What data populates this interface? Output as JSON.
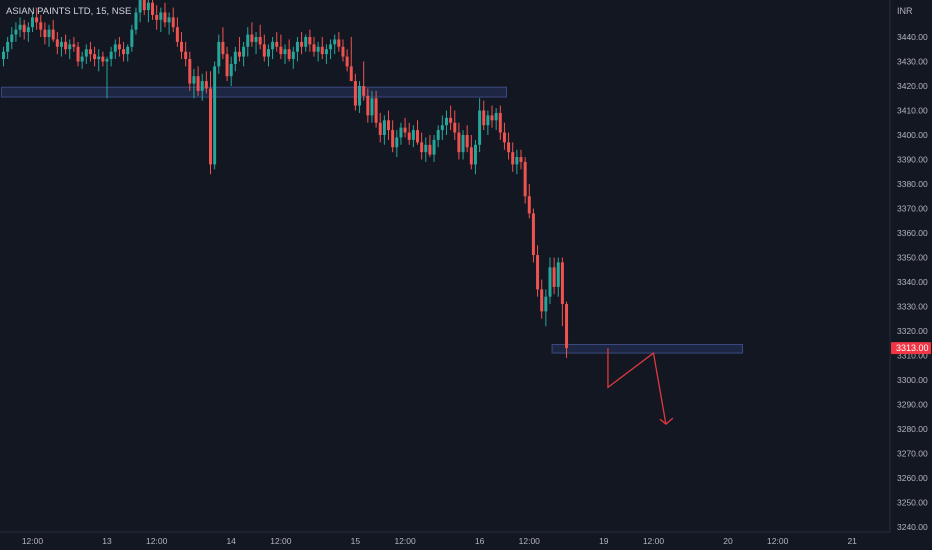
{
  "header": {
    "symbol_title": "ASIAN PAINTS LTD, 15, NSE",
    "currency": "INR"
  },
  "price_badge": {
    "value": "3313.00",
    "color": "#f23645"
  },
  "colors": {
    "background": "#131722",
    "up": "#26a69a",
    "down": "#ef5350",
    "zone_fill": "#2a3a6b",
    "zone_border": "#3b4a80",
    "projection": "#e0383e",
    "axis_text": "#b2b5be"
  },
  "chart_data": {
    "type": "candlestick",
    "y_axis": {
      "range": [
        3236,
        3462
      ],
      "ticks": [
        3240,
        3250,
        3260,
        3270,
        3280,
        3290,
        3300,
        3310,
        3320,
        3330,
        3340,
        3350,
        3360,
        3370,
        3380,
        3390,
        3400,
        3410,
        3420,
        3430,
        3440
      ],
      "position": "right"
    },
    "x_axis": {
      "labels": [
        "12:00",
        "13",
        "12:00",
        "14",
        "12:00",
        "15",
        "12:00",
        "16",
        "12:00",
        "19",
        "12:00",
        "20",
        "12:00",
        "21"
      ],
      "label_bars": [
        7,
        25,
        37,
        55,
        67,
        85,
        97,
        115,
        127,
        145,
        157,
        175,
        187,
        205
      ]
    },
    "candles": [
      [
        3431,
        3436,
        3428,
        3434
      ],
      [
        3434,
        3440,
        3431,
        3438
      ],
      [
        3438,
        3444,
        3435,
        3441
      ],
      [
        3441,
        3446,
        3438,
        3443
      ],
      [
        3443,
        3448,
        3440,
        3445
      ],
      [
        3445,
        3447,
        3439,
        3442
      ],
      [
        3442,
        3446,
        3438,
        3444
      ],
      [
        3444,
        3450,
        3442,
        3448
      ],
      [
        3448,
        3452,
        3443,
        3446
      ],
      [
        3446,
        3449,
        3440,
        3443
      ],
      [
        3443,
        3446,
        3437,
        3440
      ],
      [
        3440,
        3445,
        3436,
        3443
      ],
      [
        3443,
        3447,
        3438,
        3439
      ],
      [
        3439,
        3442,
        3433,
        3436
      ],
      [
        3436,
        3440,
        3432,
        3438
      ],
      [
        3438,
        3441,
        3433,
        3435
      ],
      [
        3435,
        3439,
        3431,
        3437
      ],
      [
        3437,
        3440,
        3434,
        3436
      ],
      [
        3436,
        3438,
        3428,
        3430
      ],
      [
        3430,
        3434,
        3427,
        3432
      ],
      [
        3432,
        3437,
        3429,
        3435
      ],
      [
        3435,
        3438,
        3430,
        3433
      ],
      [
        3433,
        3436,
        3428,
        3431
      ],
      [
        3431,
        3435,
        3426,
        3432
      ],
      [
        3432,
        3434,
        3428,
        3430
      ],
      [
        3430,
        3432,
        3415,
        3431
      ],
      [
        3431,
        3436,
        3428,
        3434
      ],
      [
        3434,
        3439,
        3431,
        3437
      ],
      [
        3437,
        3440,
        3432,
        3435
      ],
      [
        3435,
        3438,
        3430,
        3433
      ],
      [
        3433,
        3437,
        3430,
        3436
      ],
      [
        3436,
        3445,
        3434,
        3443
      ],
      [
        3443,
        3452,
        3441,
        3450
      ],
      [
        3450,
        3460,
        3446,
        3456
      ],
      [
        3456,
        3460,
        3449,
        3451
      ],
      [
        3451,
        3458,
        3446,
        3454
      ],
      [
        3454,
        3459,
        3447,
        3449
      ],
      [
        3449,
        3453,
        3443,
        3447
      ],
      [
        3447,
        3452,
        3442,
        3450
      ],
      [
        3450,
        3454,
        3444,
        3446
      ],
      [
        3446,
        3450,
        3441,
        3448
      ],
      [
        3448,
        3452,
        3442,
        3444
      ],
      [
        3444,
        3448,
        3436,
        3438
      ],
      [
        3438,
        3442,
        3431,
        3434
      ],
      [
        3434,
        3438,
        3428,
        3431
      ],
      [
        3431,
        3434,
        3418,
        3421
      ],
      [
        3421,
        3427,
        3415,
        3424
      ],
      [
        3424,
        3428,
        3416,
        3418
      ],
      [
        3418,
        3425,
        3414,
        3422
      ],
      [
        3422,
        3426,
        3417,
        3419
      ],
      [
        3419,
        3426,
        3384,
        3388
      ],
      [
        3388,
        3430,
        3386,
        3428
      ],
      [
        3428,
        3441,
        3425,
        3438
      ],
      [
        3438,
        3444,
        3431,
        3433
      ],
      [
        3433,
        3436,
        3422,
        3424
      ],
      [
        3424,
        3432,
        3420,
        3429
      ],
      [
        3429,
        3436,
        3426,
        3434
      ],
      [
        3434,
        3440,
        3430,
        3432
      ],
      [
        3432,
        3438,
        3428,
        3436
      ],
      [
        3436,
        3444,
        3432,
        3441
      ],
      [
        3441,
        3446,
        3436,
        3438
      ],
      [
        3438,
        3442,
        3433,
        3440
      ],
      [
        3440,
        3445,
        3435,
        3437
      ],
      [
        3437,
        3441,
        3430,
        3432
      ],
      [
        3432,
        3437,
        3428,
        3435
      ],
      [
        3435,
        3440,
        3431,
        3438
      ],
      [
        3438,
        3442,
        3434,
        3436
      ],
      [
        3436,
        3441,
        3431,
        3433
      ],
      [
        3433,
        3437,
        3429,
        3435
      ],
      [
        3435,
        3439,
        3430,
        3431
      ],
      [
        3431,
        3436,
        3427,
        3434
      ],
      [
        3434,
        3440,
        3430,
        3438
      ],
      [
        3438,
        3442,
        3433,
        3436
      ],
      [
        3436,
        3441,
        3434,
        3440
      ],
      [
        3440,
        3443,
        3434,
        3437
      ],
      [
        3437,
        3440,
        3432,
        3434
      ],
      [
        3434,
        3438,
        3430,
        3436
      ],
      [
        3436,
        3440,
        3431,
        3433
      ],
      [
        3433,
        3437,
        3429,
        3435
      ],
      [
        3435,
        3439,
        3431,
        3437
      ],
      [
        3437,
        3441,
        3433,
        3439
      ],
      [
        3439,
        3442,
        3434,
        3436
      ],
      [
        3436,
        3439,
        3430,
        3432
      ],
      [
        3432,
        3435,
        3426,
        3428
      ],
      [
        3428,
        3440,
        3424,
        3422
      ],
      [
        3422,
        3425,
        3410,
        3412
      ],
      [
        3412,
        3422,
        3409,
        3420
      ],
      [
        3420,
        3430,
        3414,
        3416
      ],
      [
        3416,
        3419,
        3405,
        3408
      ],
      [
        3408,
        3418,
        3405,
        3415
      ],
      [
        3415,
        3418,
        3403,
        3405
      ],
      [
        3405,
        3409,
        3397,
        3400
      ],
      [
        3400,
        3408,
        3396,
        3406
      ],
      [
        3406,
        3410,
        3398,
        3402
      ],
      [
        3402,
        3406,
        3393,
        3395
      ],
      [
        3395,
        3402,
        3391,
        3399
      ],
      [
        3399,
        3405,
        3396,
        3403
      ],
      [
        3403,
        3407,
        3399,
        3401
      ],
      [
        3401,
        3405,
        3396,
        3398
      ],
      [
        3398,
        3404,
        3395,
        3402
      ],
      [
        3402,
        3406,
        3396,
        3397
      ],
      [
        3397,
        3401,
        3390,
        3393
      ],
      [
        3393,
        3399,
        3389,
        3396
      ],
      [
        3396,
        3400,
        3391,
        3392
      ],
      [
        3392,
        3400,
        3389,
        3398
      ],
      [
        3398,
        3404,
        3395,
        3402
      ],
      [
        3402,
        3408,
        3398,
        3404
      ],
      [
        3404,
        3410,
        3400,
        3407
      ],
      [
        3407,
        3412,
        3402,
        3405
      ],
      [
        3405,
        3410,
        3398,
        3401
      ],
      [
        3401,
        3405,
        3390,
        3393
      ],
      [
        3393,
        3402,
        3390,
        3400
      ],
      [
        3400,
        3404,
        3393,
        3395
      ],
      [
        3395,
        3400,
        3386,
        3388
      ],
      [
        3388,
        3398,
        3384,
        3396
      ],
      [
        3396,
        3415,
        3393,
        3410
      ],
      [
        3410,
        3414,
        3402,
        3404
      ],
      [
        3404,
        3410,
        3400,
        3408
      ],
      [
        3408,
        3412,
        3403,
        3406
      ],
      [
        3406,
        3411,
        3402,
        3409
      ],
      [
        3409,
        3412,
        3398,
        3401
      ],
      [
        3401,
        3405,
        3394,
        3397
      ],
      [
        3397,
        3401,
        3390,
        3393
      ],
      [
        3393,
        3397,
        3385,
        3388
      ],
      [
        3388,
        3394,
        3384,
        3391
      ],
      [
        3391,
        3394,
        3386,
        3389
      ],
      [
        3389,
        3391,
        3372,
        3375
      ],
      [
        3375,
        3380,
        3366,
        3368
      ],
      [
        3368,
        3370,
        3348,
        3351
      ],
      [
        3351,
        3355,
        3334,
        3337
      ],
      [
        3337,
        3341,
        3325,
        3328
      ],
      [
        3328,
        3337,
        3322,
        3334
      ],
      [
        3334,
        3350,
        3331,
        3346
      ],
      [
        3346,
        3350,
        3335,
        3338
      ],
      [
        3338,
        3350,
        3334,
        3348
      ],
      [
        3348,
        3350,
        3322,
        3331
      ],
      [
        3331,
        3332,
        3309,
        3313
      ]
    ],
    "zones": [
      {
        "from_bar": 0,
        "to_bar": 121,
        "low": 3415.5,
        "high": 3419.5
      },
      {
        "from_bar": 133,
        "to_bar": 178,
        "low": 3311,
        "high": 3314.5
      }
    ],
    "projection_path": [
      {
        "bar": 146,
        "price": 3313
      },
      {
        "bar": 146,
        "price": 3297
      },
      {
        "bar": 157,
        "price": 3311
      },
      {
        "bar": 160,
        "price": 3282
      }
    ],
    "last_price": 3313
  }
}
